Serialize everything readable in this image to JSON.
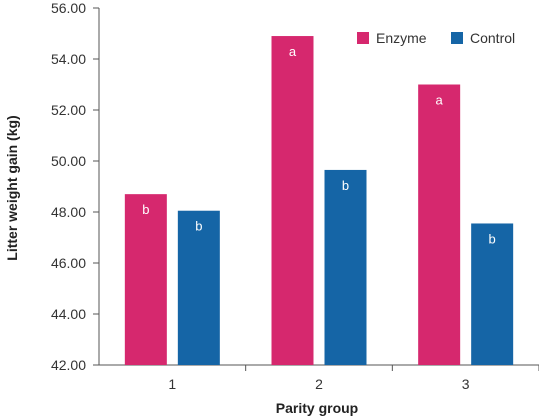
{
  "chart_data": {
    "type": "bar",
    "title": "",
    "xlabel": "Parity group",
    "ylabel": "Litter weight gain (kg)",
    "categories": [
      "1",
      "2",
      "3"
    ],
    "series": [
      {
        "name": "Enzyme",
        "color": "#d6286e",
        "values": [
          48.7,
          54.9,
          53.0
        ],
        "labels": [
          "b",
          "a",
          "a"
        ]
      },
      {
        "name": "Control",
        "color": "#1565a6",
        "values": [
          48.05,
          49.65,
          47.55
        ],
        "labels": [
          "b",
          "b",
          "b"
        ]
      }
    ],
    "ylim": [
      42.0,
      56.0
    ],
    "yticks": [
      "42.00",
      "44.00",
      "46.00",
      "48.00",
      "50.00",
      "52.00",
      "54.00",
      "56.00"
    ],
    "grid": false,
    "legend_position": "top-right"
  }
}
